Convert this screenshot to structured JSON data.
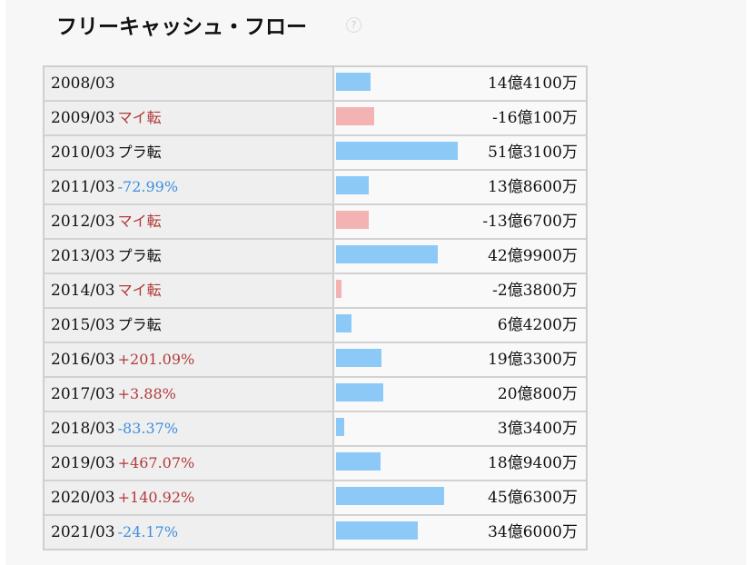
{
  "header": {
    "title": "フリーキャッシュ・フロー",
    "help_icon": "?"
  },
  "bar_colors": {
    "positive": "#8cc9f7",
    "negative": "#f3b3b3"
  },
  "table": {
    "rows": [
      {
        "period": "2008/03",
        "value": 1441000000,
        "value_label": "14億4100万"
      },
      {
        "period": "2009/03",
        "change": "マイ転",
        "change_color": "#b23a3a",
        "value": -1601000000,
        "value_label": "-16億100万"
      },
      {
        "period": "2010/03",
        "change": "プラ転",
        "change_color": "#111111",
        "value": 5131000000,
        "value_label": "51億3100万"
      },
      {
        "period": "2011/03",
        "change": "-72.99%",
        "change_color": "#3d8fe0",
        "value": 1386000000,
        "value_label": "13億8600万"
      },
      {
        "period": "2012/03",
        "change": "マイ転",
        "change_color": "#b23a3a",
        "value": -1367000000,
        "value_label": "-13億6700万"
      },
      {
        "period": "2013/03",
        "change": "プラ転",
        "change_color": "#111111",
        "value": 4299000000,
        "value_label": "42億9900万"
      },
      {
        "period": "2014/03",
        "change": "マイ転",
        "change_color": "#b23a3a",
        "value": -238000000,
        "value_label": "-2億3800万"
      },
      {
        "period": "2015/03",
        "change": "プラ転",
        "change_color": "#111111",
        "value": 642000000,
        "value_label": "6億4200万"
      },
      {
        "period": "2016/03",
        "change": "+201.09%",
        "change_color": "#b23a3a",
        "value": 1933000000,
        "value_label": "19億3300万"
      },
      {
        "period": "2017/03",
        "change": "+3.88%",
        "change_color": "#b23a3a",
        "value": 2008000000,
        "value_label": "20億800万"
      },
      {
        "period": "2018/03",
        "change": "-83.37%",
        "change_color": "#3d8fe0",
        "value": 334000000,
        "value_label": "3億3400万"
      },
      {
        "period": "2019/03",
        "change": "+467.07%",
        "change_color": "#b23a3a",
        "value": 1894000000,
        "value_label": "18億9400万"
      },
      {
        "period": "2020/03",
        "change": "+140.92%",
        "change_color": "#b23a3a",
        "value": 4563000000,
        "value_label": "45億6300万"
      },
      {
        "period": "2021/03",
        "change": "-24.17%",
        "change_color": "#3d8fe0",
        "value": 3460000000,
        "value_label": "34億6000万"
      }
    ]
  }
}
